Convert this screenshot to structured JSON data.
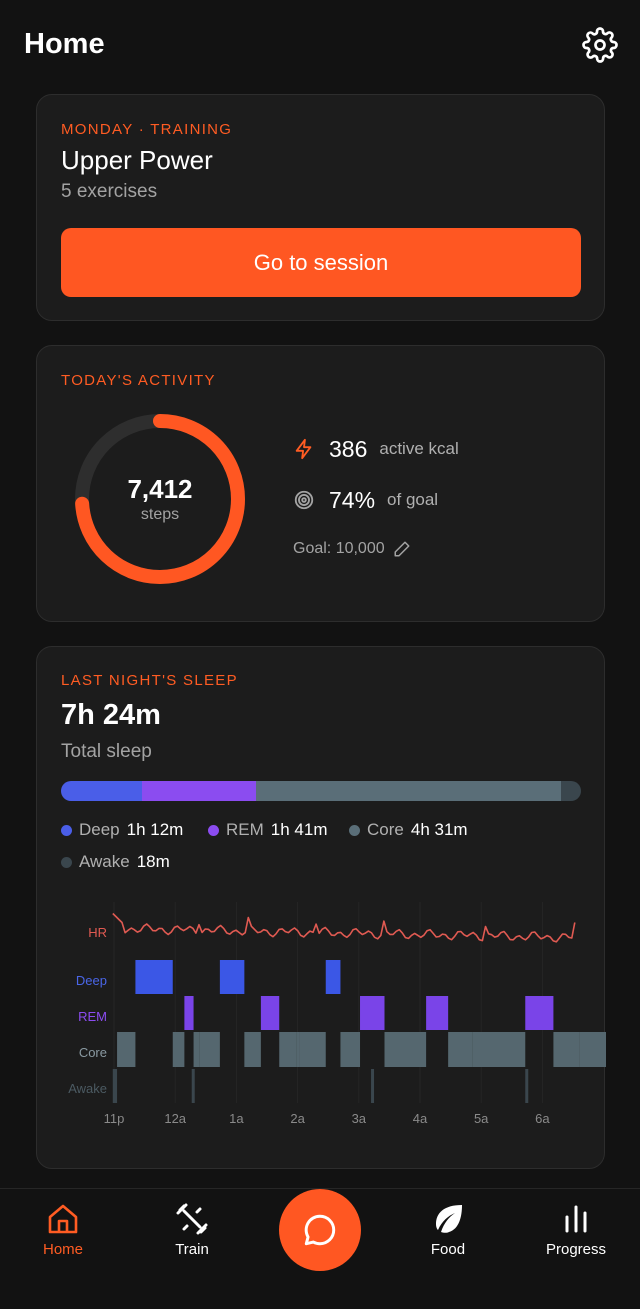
{
  "header": {
    "title": "Home"
  },
  "training": {
    "eyebrow": "MONDAY · TRAINING",
    "title": "Upper Power",
    "subtitle": "5 exercises",
    "cta": "Go to session"
  },
  "activity": {
    "eyebrow": "TODAY'S ACTIVITY",
    "steps_value": "7,412",
    "steps_unit": "steps",
    "progress": 0.74,
    "kcal_value": "386",
    "kcal_label": "active kcal",
    "goal_pct_value": "74%",
    "goal_pct_label": "of goal",
    "goal_text": "Goal: 10,000"
  },
  "sleep": {
    "eyebrow": "LAST NIGHT'S SLEEP",
    "total": "7h 24m",
    "total_label": "Total sleep",
    "stages": [
      {
        "name": "Deep",
        "value": "1h 12m",
        "minutes": 72,
        "color": "#4a5ee8"
      },
      {
        "name": "REM",
        "value": "1h 41m",
        "minutes": 101,
        "color": "#8b4cf0"
      },
      {
        "name": "Core",
        "value": "4h 31m",
        "minutes": 271,
        "color": "#5a6e78"
      },
      {
        "name": "Awake",
        "value": "18m",
        "minutes": 18,
        "color": "#3a464d"
      }
    ],
    "chart_labels": {
      "hr": "HR",
      "deep": "Deep",
      "rem": "REM",
      "core": "Core",
      "awake": "Awake"
    },
    "time_ticks": [
      "11p",
      "12a",
      "1a",
      "2a",
      "3a",
      "4a",
      "5a",
      "6a"
    ],
    "colors": {
      "hr": "#e05a52",
      "deep": "#3b57e6",
      "rem": "#7a44e8",
      "core": "#55676f",
      "awake": "#3a464d"
    }
  },
  "nav": {
    "items": [
      {
        "label": "Home",
        "icon": "home-icon",
        "active": true
      },
      {
        "label": "Train",
        "icon": "dumbbell-icon",
        "active": false
      },
      {
        "label": "Food",
        "icon": "leaf-icon",
        "active": false
      },
      {
        "label": "Progress",
        "icon": "bar-chart-icon",
        "active": false
      }
    ],
    "center_icon": "chat-icon"
  },
  "colors": {
    "accent": "#ff5722",
    "background": "#121212",
    "card": "#1c1c1c"
  }
}
